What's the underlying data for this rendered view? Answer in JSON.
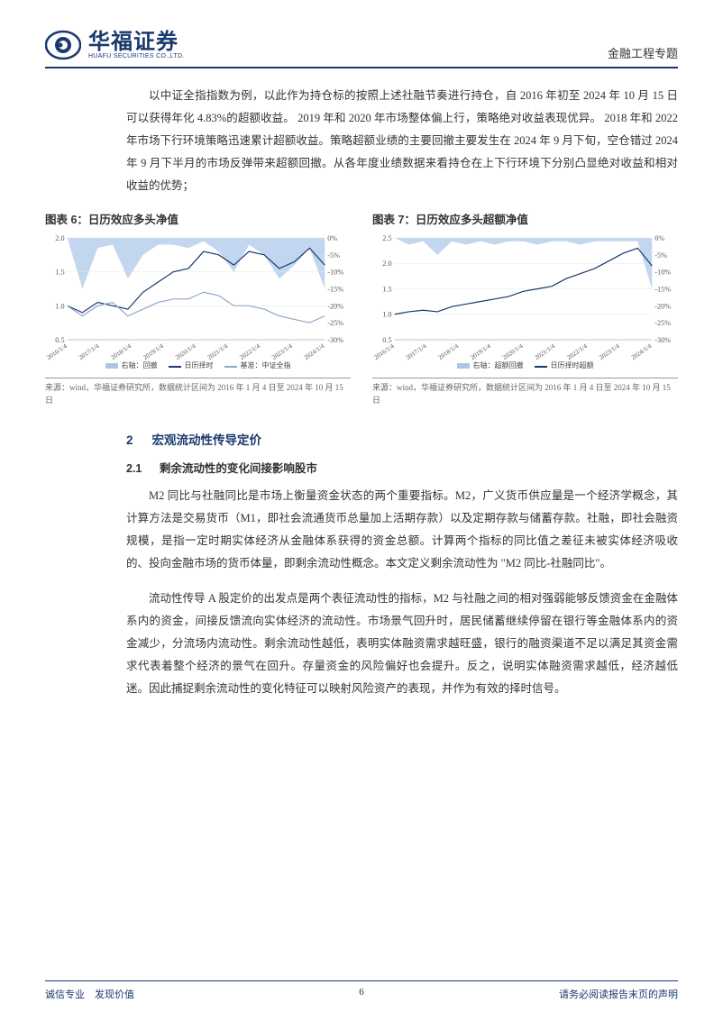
{
  "header": {
    "logo_cn": "华福证券",
    "logo_en": "HUAFU SECURITIES CO.,LTD.",
    "category": "金融工程专题"
  },
  "para1": "以中证全指指数为例，以此作为持仓标的按照上述社融节奏进行持仓，自 2016 年初至 2024 年 10 月 15 日可以获得年化 4.83%的超额收益。 2019 年和 2020 年市场整体偏上行，策略绝对收益表现优异。 2018 年和 2022 年市场下行环境策略迅速累计超额收益。策略超额业绩的主要回撤主要发生在 2024 年 9 月下旬，空仓错过 2024 年 9 月下半月的市场反弹带来超额回撤。从各年度业绩数据来看持仓在上下行环境下分别凸显绝对收益和相对收益的优势；",
  "chart6": {
    "title": "图表 6：日历效应多头净值",
    "type": "line-with-area",
    "x_labels": [
      "2016/1/4",
      "2017/1/4",
      "2018/1/4",
      "2019/1/4",
      "2020/1/4",
      "2021/1/4",
      "2022/1/4",
      "2023/1/4",
      "2024/1/4"
    ],
    "left_axis": {
      "min": 0.5,
      "max": 2.0,
      "ticks": [
        0.5,
        1.0,
        1.5,
        2.0
      ]
    },
    "right_axis": {
      "min": -30,
      "max": 0,
      "ticks": [
        "0%",
        "-5%",
        "-10%",
        "-15%",
        "-20%",
        "-25%",
        "-30%"
      ]
    },
    "colors": {
      "drawdown_area": "#a9c5e8",
      "strategy_line": "#1a3a6e",
      "bench_line": "#8fa8c9",
      "background": "#ffffff",
      "grid": "#e6e6e6",
      "text": "#555555"
    },
    "legend": [
      {
        "label": "右轴：回撤",
        "color": "#a9c5e8",
        "type": "area"
      },
      {
        "label": "日历择时",
        "color": "#1a3a6e",
        "type": "line"
      },
      {
        "label": "基准：中证全指",
        "color": "#8fa8c9",
        "type": "line"
      }
    ],
    "strategy_values": [
      1.0,
      0.9,
      1.05,
      1.0,
      0.95,
      1.2,
      1.35,
      1.5,
      1.55,
      1.8,
      1.75,
      1.6,
      1.8,
      1.75,
      1.55,
      1.65,
      1.85,
      1.6
    ],
    "bench_values": [
      1.0,
      0.85,
      1.0,
      1.05,
      0.85,
      0.95,
      1.05,
      1.1,
      1.1,
      1.2,
      1.15,
      1.0,
      1.0,
      0.95,
      0.85,
      0.8,
      0.75,
      0.85
    ],
    "drawdown_pct": [
      0,
      -15,
      -3,
      -2,
      -12,
      -5,
      -2,
      -2,
      -3,
      -1,
      -4,
      -10,
      -2,
      -5,
      -12,
      -8,
      -3,
      -15
    ],
    "label_fontsize": 8,
    "line_width": 1.2,
    "caption": "来源：wind，华福证券研究所，数据统计区间为 2016 年 1 月 4 日至 2024 年 10 月 15 日"
  },
  "chart7": {
    "title": "图表 7：日历效应多头超额净值",
    "type": "line-with-area",
    "x_labels": [
      "2016/1/4",
      "2017/1/4",
      "2018/1/4",
      "2019/1/4",
      "2020/1/4",
      "2021/1/4",
      "2022/1/4",
      "2023/1/4",
      "2024/1/4"
    ],
    "left_axis": {
      "min": 0.5,
      "max": 2.5,
      "ticks": [
        0.5,
        1.0,
        1.5,
        2.0,
        2.5
      ]
    },
    "right_axis": {
      "min": -30,
      "max": 0,
      "ticks": [
        "0%",
        "-5%",
        "-10%",
        "-15%",
        "-20%",
        "-25%",
        "-30%"
      ]
    },
    "colors": {
      "drawdown_area": "#a9c5e8",
      "excess_line": "#1a3a6e",
      "background": "#ffffff",
      "grid": "#e6e6e6",
      "text": "#555555"
    },
    "legend": [
      {
        "label": "右轴：超额回撤",
        "color": "#a9c5e8",
        "type": "area"
      },
      {
        "label": "日历择时超额",
        "color": "#1a3a6e",
        "type": "line"
      }
    ],
    "excess_values": [
      1.0,
      1.05,
      1.08,
      1.05,
      1.15,
      1.2,
      1.25,
      1.3,
      1.35,
      1.45,
      1.5,
      1.55,
      1.7,
      1.8,
      1.9,
      2.05,
      2.2,
      2.3,
      1.95
    ],
    "drawdown_pct": [
      0,
      -2,
      -1,
      -5,
      -1,
      -2,
      -1,
      -2,
      -1,
      -1,
      -2,
      -1,
      -1,
      -2,
      -1,
      -1,
      -1,
      -1,
      -15
    ],
    "label_fontsize": 8,
    "line_width": 1.2,
    "caption": "来源：wind，华福证券研究所，数据统计区间为 2016 年 1 月 4 日至 2024 年 10 月 15 日"
  },
  "section2": {
    "num": "2",
    "title": "宏观流动性传导定价"
  },
  "subsection21": {
    "num": "2.1",
    "title": "剩余流动性的变化间接影响股市"
  },
  "para2": "M2 同比与社融同比是市场上衡量资金状态的两个重要指标。M2，广义货币供应量是一个经济学概念，其计算方法是交易货币（M1，即社会流通货币总量加上活期存款）以及定期存款与储蓄存款。社融，即社会融资规模，是指一定时期实体经济从金融体系获得的资金总额。计算两个指标的同比值之差征未被实体经济吸收的、投向金融市场的货币体量，即剩余流动性概念。本文定义剩余流动性为 \"M2 同比-社融同比\"。",
  "para3": "流动性传导 A 股定价的出发点是两个表征流动性的指标，M2 与社融之间的相对强弱能够反馈资金在金融体系内的资金，间接反馈流向实体经济的流动性。市场景气回升时，居民储蓄继续停留在银行等金融体系内的资金减少，分流场内流动性。剩余流动性越低，表明实体融资需求越旺盛，银行的融资渠道不足以满足其资金需求代表着整个经济的景气在回升。存量资金的风险偏好也会提升。反之，说明实体融资需求越低，经济越低迷。因此捕捉剩余流动性的变化特征可以映射风险资产的表现，并作为有效的择时信号。",
  "footer": {
    "left": "诚信专业　发现价值",
    "page": "6",
    "right": "请务必阅读报告末页的声明"
  }
}
